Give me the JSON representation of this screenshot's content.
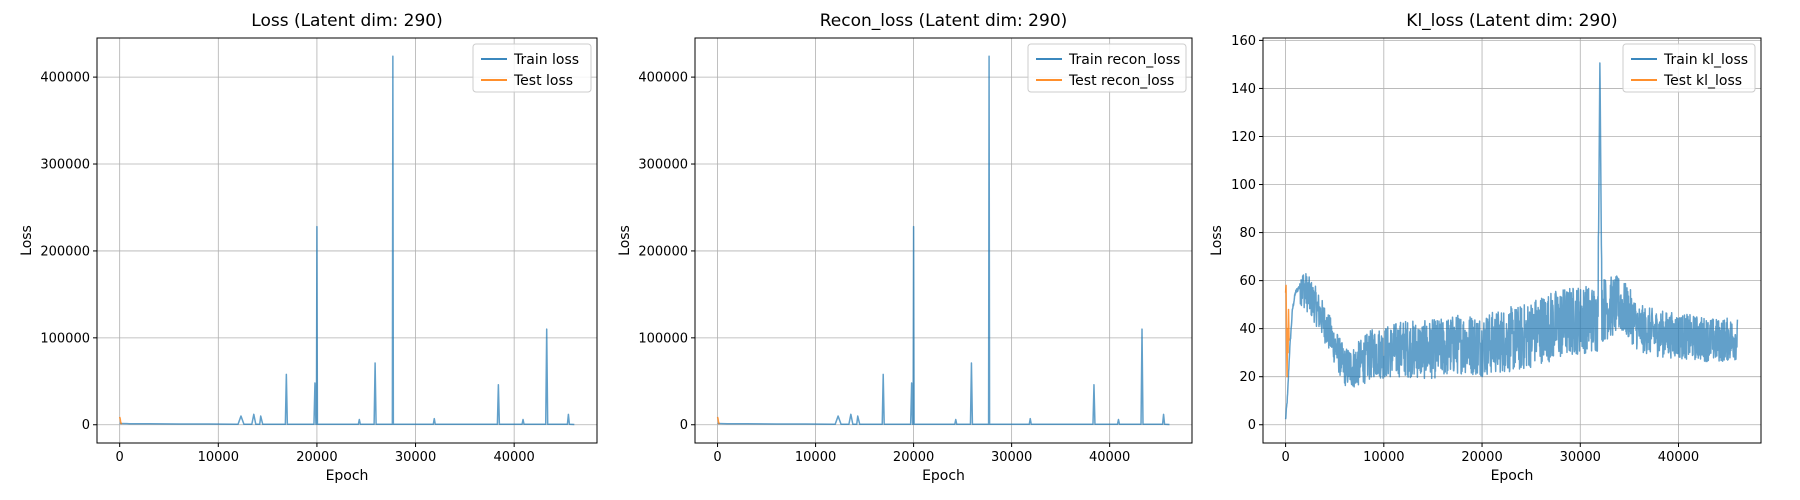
{
  "chart_data": [
    {
      "type": "line",
      "title": "Loss (Latent dim: 290)",
      "xlabel": "Epoch",
      "ylabel": "Loss",
      "xlim": [
        -2300,
        48400
      ],
      "ylim": [
        -21000,
        445000
      ],
      "xticks": [
        0,
        10000,
        20000,
        30000,
        40000
      ],
      "yticks": [
        0,
        100000,
        200000,
        300000,
        400000
      ],
      "grid": true,
      "legend_position": "top-right",
      "series": [
        {
          "name": "Train loss",
          "color": "#1f77b4",
          "points": [
            [
              0,
              1500
            ],
            [
              1000,
              1200
            ],
            [
              3000,
              1100
            ],
            [
              6000,
              900
            ],
            [
              9000,
              800
            ],
            [
              12000,
              600
            ],
            [
              12300,
              10000
            ],
            [
              12600,
              600
            ],
            [
              13400,
              600
            ],
            [
              13600,
              12000
            ],
            [
              13800,
              600
            ],
            [
              14200,
              600
            ],
            [
              14300,
              10000
            ],
            [
              14500,
              600
            ],
            [
              16800,
              600
            ],
            [
              16900,
              58000
            ],
            [
              17000,
              600
            ],
            [
              19700,
              600
            ],
            [
              19800,
              48000
            ],
            [
              19900,
              600
            ],
            [
              19950,
              600
            ],
            [
              20000,
              228000
            ],
            [
              20050,
              600
            ],
            [
              24200,
              600
            ],
            [
              24300,
              6000
            ],
            [
              24400,
              600
            ],
            [
              25800,
              600
            ],
            [
              25900,
              71000
            ],
            [
              26000,
              600
            ],
            [
              27650,
              600
            ],
            [
              27700,
              424000
            ],
            [
              27750,
              600
            ],
            [
              31800,
              600
            ],
            [
              31900,
              7000
            ],
            [
              32000,
              600
            ],
            [
              38300,
              600
            ],
            [
              38400,
              46000
            ],
            [
              38500,
              600
            ],
            [
              40800,
              600
            ],
            [
              40900,
              6000
            ],
            [
              41000,
              600
            ],
            [
              43200,
              600
            ],
            [
              43300,
              110000
            ],
            [
              43400,
              600
            ],
            [
              45400,
              600
            ],
            [
              45500,
              12000
            ],
            [
              45600,
              600
            ],
            [
              46100,
              300
            ]
          ]
        },
        {
          "name": "Test loss",
          "color": "#ff7f0e",
          "points": [
            [
              0,
              9000
            ],
            [
              50,
              7000
            ],
            [
              100,
              3000
            ],
            [
              150,
              1500
            ],
            [
              200,
              800
            ]
          ]
        }
      ]
    },
    {
      "type": "line",
      "title": "Recon_loss (Latent dim: 290)",
      "xlabel": "Epoch",
      "ylabel": "Loss",
      "xlim": [
        -2300,
        48400
      ],
      "ylim": [
        -21000,
        445000
      ],
      "xticks": [
        0,
        10000,
        20000,
        30000,
        40000
      ],
      "yticks": [
        0,
        100000,
        200000,
        300000,
        400000
      ],
      "grid": true,
      "legend_position": "top-right",
      "series": [
        {
          "name": "Train recon_loss",
          "color": "#1f77b4",
          "points": [
            [
              0,
              1500
            ],
            [
              1000,
              1200
            ],
            [
              3000,
              1100
            ],
            [
              6000,
              900
            ],
            [
              9000,
              800
            ],
            [
              12000,
              600
            ],
            [
              12300,
              10000
            ],
            [
              12600,
              600
            ],
            [
              13400,
              600
            ],
            [
              13600,
              12000
            ],
            [
              13800,
              600
            ],
            [
              14200,
              600
            ],
            [
              14300,
              10000
            ],
            [
              14500,
              600
            ],
            [
              16800,
              600
            ],
            [
              16900,
              58000
            ],
            [
              17000,
              600
            ],
            [
              19700,
              600
            ],
            [
              19800,
              48000
            ],
            [
              19900,
              600
            ],
            [
              19950,
              600
            ],
            [
              20000,
              228000
            ],
            [
              20050,
              600
            ],
            [
              24200,
              600
            ],
            [
              24300,
              6000
            ],
            [
              24400,
              600
            ],
            [
              25800,
              600
            ],
            [
              25900,
              71000
            ],
            [
              26000,
              600
            ],
            [
              27650,
              600
            ],
            [
              27700,
              424000
            ],
            [
              27750,
              600
            ],
            [
              31800,
              600
            ],
            [
              31900,
              7000
            ],
            [
              32000,
              600
            ],
            [
              38300,
              600
            ],
            [
              38400,
              46000
            ],
            [
              38500,
              600
            ],
            [
              40800,
              600
            ],
            [
              40900,
              6000
            ],
            [
              41000,
              600
            ],
            [
              43200,
              600
            ],
            [
              43300,
              110000
            ],
            [
              43400,
              600
            ],
            [
              45400,
              600
            ],
            [
              45500,
              12000
            ],
            [
              45600,
              600
            ],
            [
              46100,
              300
            ]
          ]
        },
        {
          "name": "Test recon_loss",
          "color": "#ff7f0e",
          "points": [
            [
              0,
              9000
            ],
            [
              50,
              7000
            ],
            [
              100,
              3000
            ],
            [
              150,
              1500
            ],
            [
              200,
              800
            ]
          ]
        }
      ]
    },
    {
      "type": "line",
      "title": "Kl_loss (Latent dim: 290)",
      "xlabel": "Epoch",
      "ylabel": "Loss",
      "xlim": [
        -2300,
        48400
      ],
      "ylim": [
        -7.6,
        161
      ],
      "xticks": [
        0,
        10000,
        20000,
        30000,
        40000
      ],
      "yticks": [
        0,
        20,
        40,
        60,
        80,
        100,
        120,
        140,
        160
      ],
      "grid": true,
      "legend_position": "top-right",
      "series": [
        {
          "name": "Train kl_loss",
          "color": "#1f77b4",
          "points": [
            [
              0,
              2
            ],
            [
              200,
              12
            ],
            [
              400,
              30
            ],
            [
              700,
              48
            ],
            [
              1000,
              55
            ],
            [
              1500,
              58
            ],
            [
              2000,
              56
            ],
            [
              3000,
              50
            ],
            [
              4000,
              42
            ],
            [
              5000,
              33
            ],
            [
              6000,
              24
            ],
            [
              7000,
              24
            ],
            [
              8000,
              27
            ],
            [
              9000,
              30
            ],
            [
              10000,
              30
            ],
            [
              12000,
              32
            ],
            [
              14000,
              31
            ],
            [
              16000,
              32
            ],
            [
              18000,
              34
            ],
            [
              20000,
              33
            ],
            [
              22000,
              35
            ],
            [
              24000,
              36
            ],
            [
              26000,
              40
            ],
            [
              28000,
              42
            ],
            [
              30000,
              44
            ],
            [
              31800,
              44
            ],
            [
              32000,
              153
            ],
            [
              32200,
              48
            ],
            [
              34000,
              50
            ],
            [
              35000,
              46
            ],
            [
              36000,
              40
            ],
            [
              38000,
              38
            ],
            [
              40000,
              37
            ],
            [
              42000,
              36
            ],
            [
              44000,
              35
            ],
            [
              46000,
              36
            ]
          ],
          "noise": [
            [
              6000,
              8
            ],
            [
              8000,
              10
            ],
            [
              12000,
              12
            ],
            [
              20000,
              13
            ],
            [
              28000,
              15
            ],
            [
              32000,
              14
            ],
            [
              36000,
              10
            ],
            [
              46000,
              9
            ]
          ]
        },
        {
          "name": "Test kl_loss",
          "color": "#ff7f0e",
          "points": [
            [
              0,
              55
            ],
            [
              50,
              58
            ],
            [
              100,
              35
            ],
            [
              150,
              20
            ],
            [
              200,
              40
            ],
            [
              250,
              30
            ],
            [
              300,
              48
            ],
            [
              350,
              35
            ]
          ]
        }
      ]
    }
  ]
}
